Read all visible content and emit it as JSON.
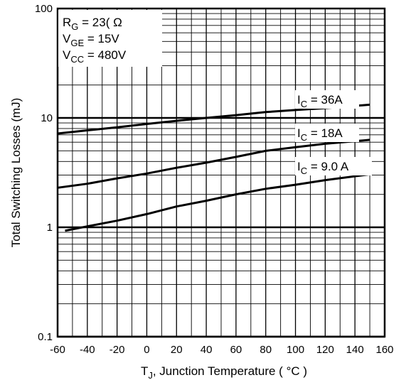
{
  "chart_data": {
    "type": "line",
    "title": "",
    "xlabel": {
      "main": "T",
      "sub": "J",
      "rest": ", Junction Temperature (  ",
      "unit": "°C",
      "close": " )"
    },
    "ylabel": "Total Switching Losses (mJ)",
    "xlim": [
      -60,
      160
    ],
    "ylim": [
      0.1,
      100
    ],
    "yscale": "log",
    "grid": true,
    "x_ticks": [
      "-60",
      "-40",
      "-20",
      "0",
      "20",
      "40",
      "60",
      "80",
      "100",
      "120",
      "140",
      "160"
    ],
    "y_ticks": [
      {
        "value": 0.1,
        "label": "0.1"
      },
      {
        "value": 1,
        "label": "1"
      },
      {
        "value": 10,
        "label": "10"
      },
      {
        "value": 100,
        "label": "100"
      }
    ],
    "conditions": [
      {
        "main": "R",
        "sub": "G",
        "value": " = 23( Ω"
      },
      {
        "main": "V",
        "sub": "GE",
        "value": " = 15V"
      },
      {
        "main": "V",
        "sub": "CC",
        "value": " = 480V"
      }
    ],
    "series": [
      {
        "label": {
          "main": "I",
          "sub": "C",
          "value": " =  36A"
        },
        "x": [
          -60,
          -40,
          -20,
          0,
          20,
          40,
          60,
          80,
          100,
          120,
          150
        ],
        "y": [
          7.2,
          7.7,
          8.2,
          8.8,
          9.4,
          10.0,
          10.6,
          11.3,
          11.8,
          12.3,
          13.2
        ]
      },
      {
        "label": {
          "main": "I",
          "sub": "C",
          "value": " =  18A"
        },
        "x": [
          -60,
          -40,
          -20,
          0,
          20,
          40,
          60,
          80,
          100,
          120,
          150
        ],
        "y": [
          2.3,
          2.5,
          2.8,
          3.1,
          3.5,
          3.9,
          4.4,
          5.0,
          5.4,
          5.8,
          6.3
        ]
      },
      {
        "label": {
          "main": "I",
          "sub": "C",
          "value": " = 9.0 A"
        },
        "x": [
          -55,
          -40,
          -20,
          0,
          20,
          40,
          60,
          80,
          100,
          120,
          150
        ],
        "y": [
          0.93,
          1.02,
          1.15,
          1.32,
          1.55,
          1.75,
          2.0,
          2.25,
          2.45,
          2.7,
          3.05
        ]
      }
    ]
  }
}
